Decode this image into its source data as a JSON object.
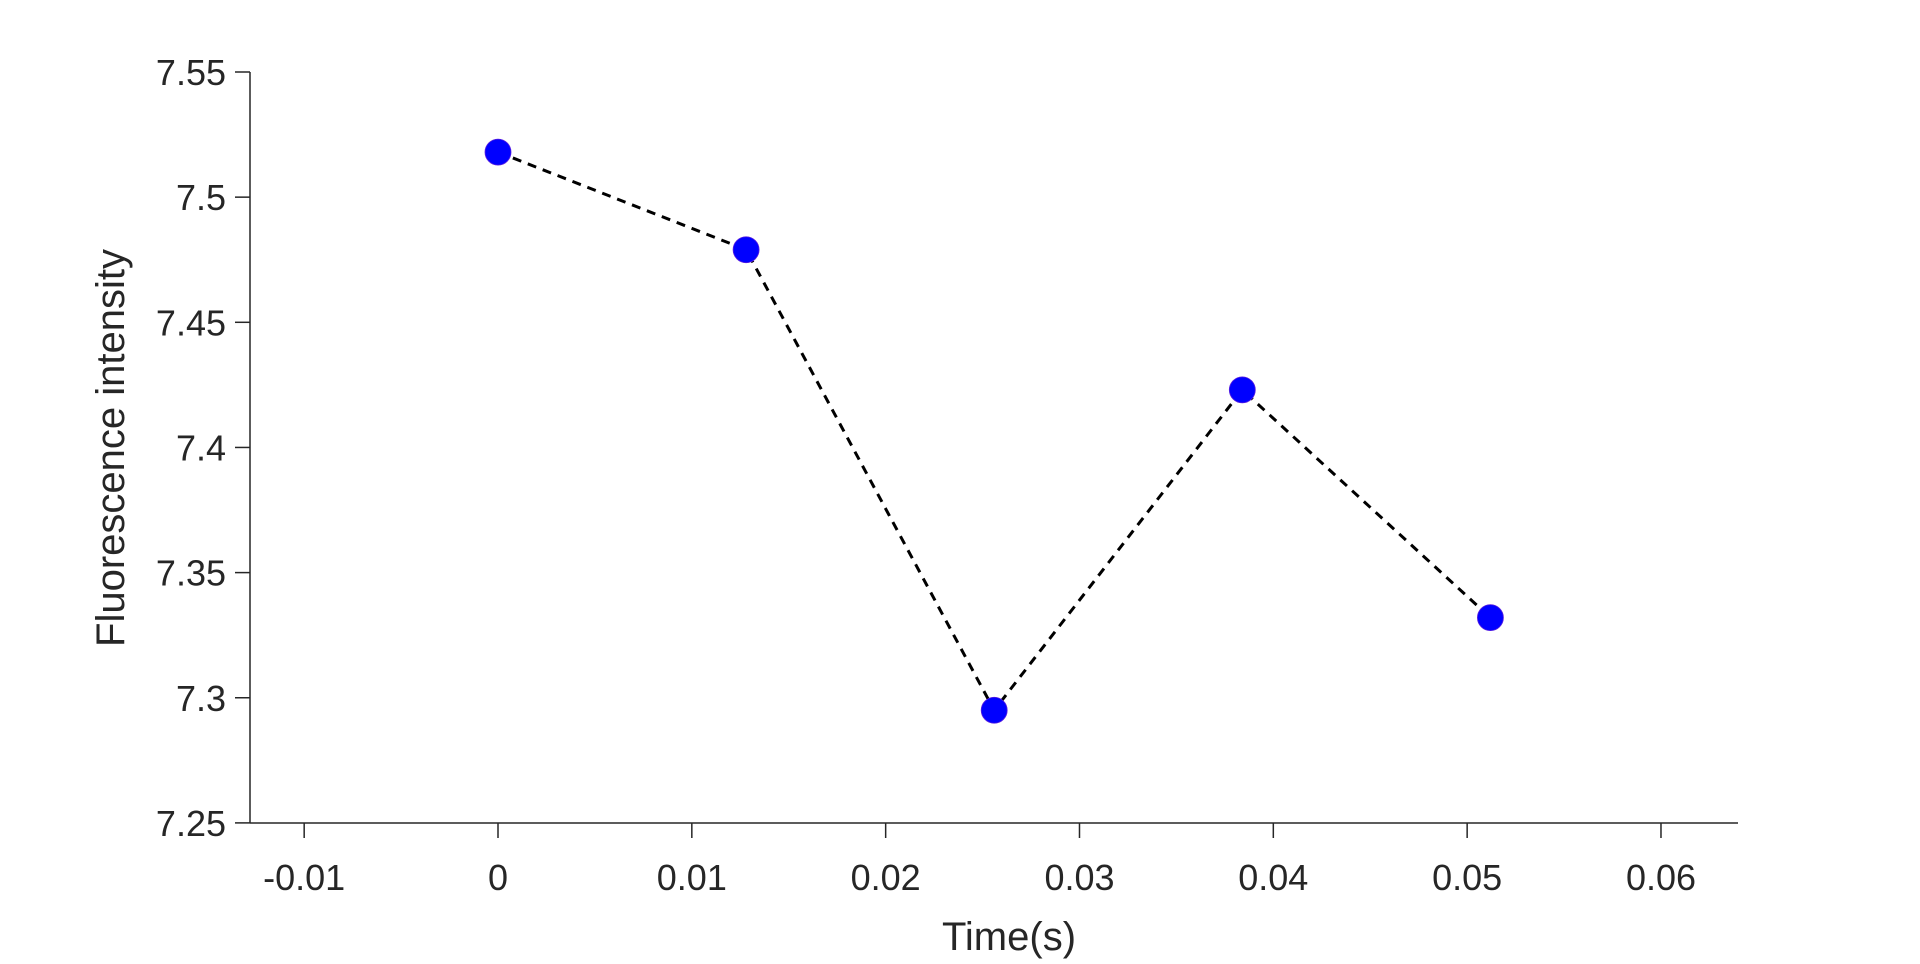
{
  "chart_data": {
    "type": "line",
    "title": "",
    "xlabel": "Time(s)",
    "ylabel": "Fluorescence intensity",
    "xlim": [
      -0.0135,
      0.0641
    ],
    "ylim": [
      7.25,
      7.55
    ],
    "x_ticks": [
      -0.01,
      0,
      0.01,
      0.02,
      0.03,
      0.04,
      0.05,
      0.06
    ],
    "x_tick_labels": [
      "-0.01",
      "0",
      "0.01",
      "0.02",
      "0.03",
      "0.04",
      "0.05",
      "0.06"
    ],
    "y_ticks": [
      7.25,
      7.3,
      7.35,
      7.4,
      7.45,
      7.5,
      7.55
    ],
    "y_tick_labels": [
      "7.25",
      "7.3",
      "7.35",
      "7.4",
      "7.45",
      "7.5",
      "7.55"
    ],
    "grid": false,
    "legend": null,
    "series": [
      {
        "name": "Fluorescence intensity",
        "x": [
          0,
          0.0128,
          0.0256,
          0.0384,
          0.0512
        ],
        "y": [
          7.518,
          7.479,
          7.295,
          7.423,
          7.332
        ],
        "line_style": "dashed",
        "line_color": "#000000",
        "marker": "circle",
        "marker_color": "#0000ff"
      }
    ]
  }
}
